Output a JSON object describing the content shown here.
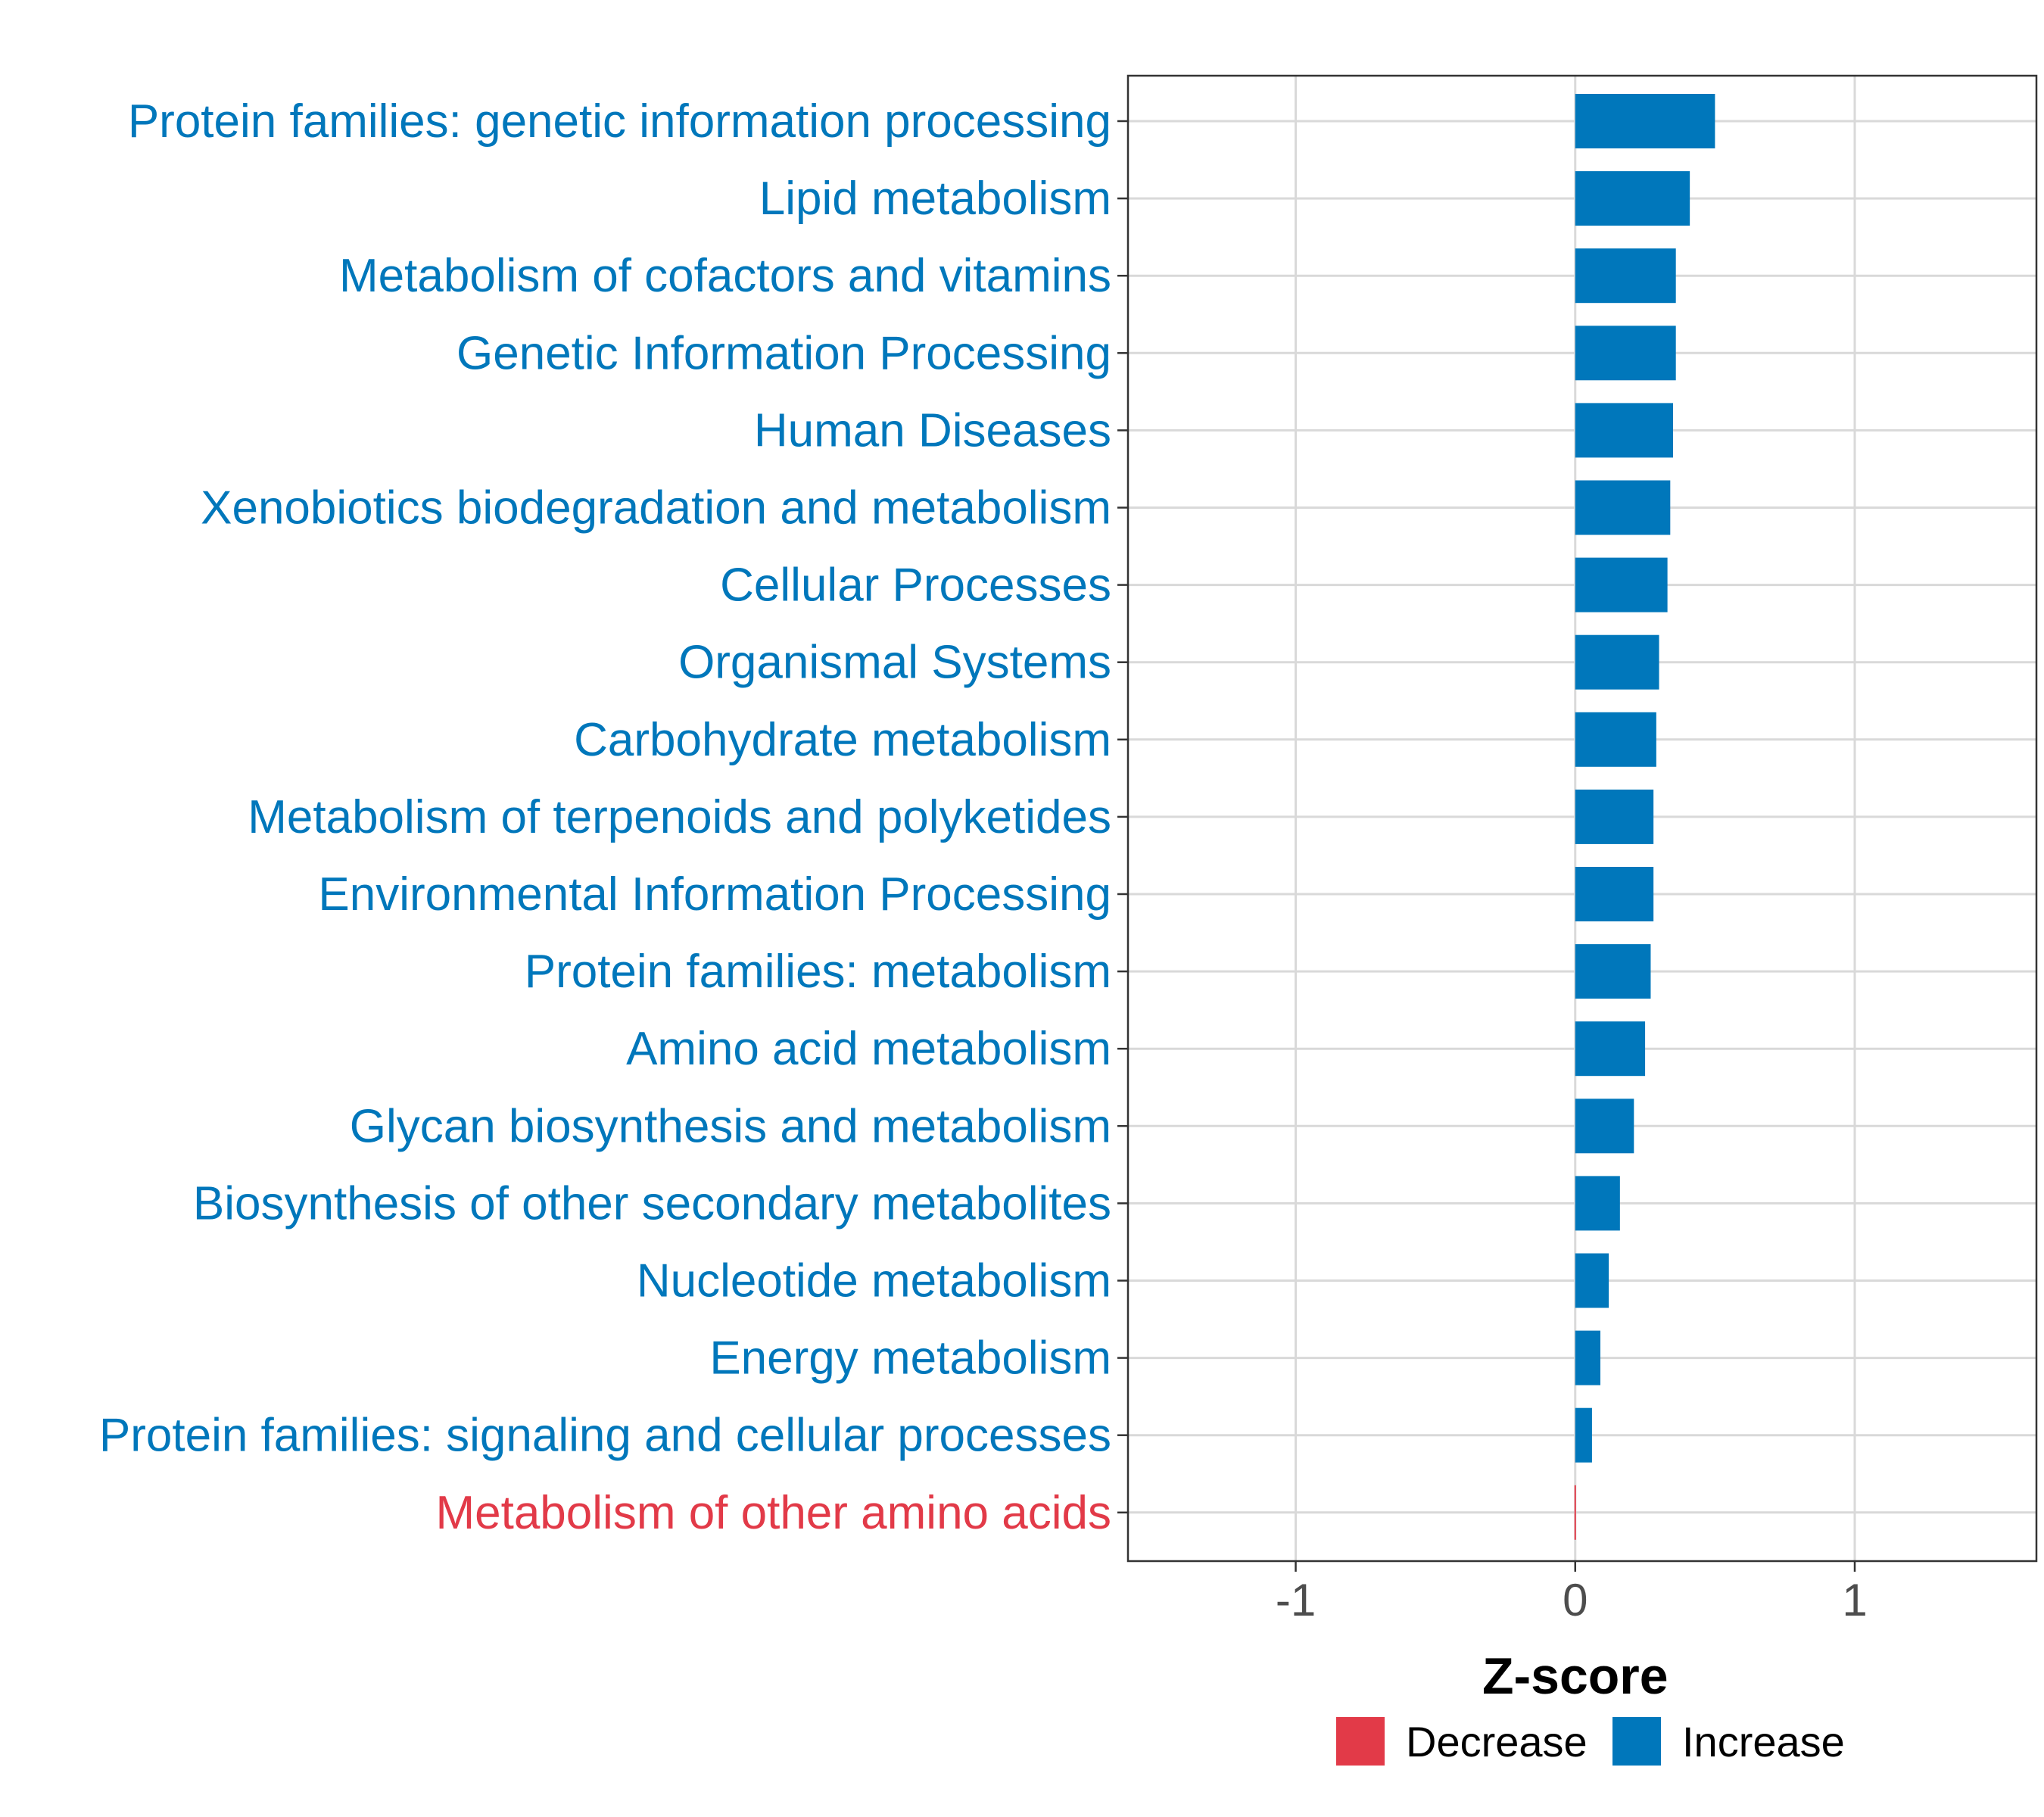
{
  "colors": {
    "increase": "#0077bb",
    "decrease": "#e23a48",
    "grid": "#d9d9d9",
    "panel_border": "#333333",
    "tick_text": "#4d4d4d"
  },
  "chart_data": {
    "type": "bar",
    "orientation": "horizontal",
    "xlabel": "Z-score",
    "ylabel": "",
    "xlim": [
      -1.6,
      1.65
    ],
    "xticks": [
      -1,
      0,
      1
    ],
    "xtick_labels": [
      "-1",
      "0",
      "1"
    ],
    "grid": true,
    "legend_position": "bottom",
    "legend": [
      {
        "label": "Decrease",
        "color": "#e23a48"
      },
      {
        "label": "Increase",
        "color": "#0077bb"
      }
    ],
    "categories": [
      "Protein families: genetic information processing",
      "Lipid metabolism",
      "Metabolism of cofactors and vitamins",
      "Genetic Information Processing",
      "Human Diseases",
      "Xenobiotics biodegradation and metabolism",
      "Cellular Processes",
      "Organismal Systems",
      "Carbohydrate metabolism",
      "Metabolism of terpenoids and polyketides",
      "Environmental Information Processing",
      "Protein families: metabolism",
      "Amino acid metabolism",
      "Glycan biosynthesis and metabolism",
      "Biosynthesis of other secondary metabolites",
      "Nucleotide metabolism",
      "Energy metabolism",
      "Protein families: signaling and cellular processes",
      "Metabolism of other amino acids"
    ],
    "values": [
      0.5,
      0.41,
      0.36,
      0.36,
      0.35,
      0.34,
      0.33,
      0.3,
      0.29,
      0.28,
      0.28,
      0.27,
      0.25,
      0.21,
      0.16,
      0.12,
      0.09,
      0.06,
      -0.003
    ],
    "groups": [
      "Increase",
      "Increase",
      "Increase",
      "Increase",
      "Increase",
      "Increase",
      "Increase",
      "Increase",
      "Increase",
      "Increase",
      "Increase",
      "Increase",
      "Increase",
      "Increase",
      "Increase",
      "Increase",
      "Increase",
      "Increase",
      "Decrease"
    ]
  }
}
